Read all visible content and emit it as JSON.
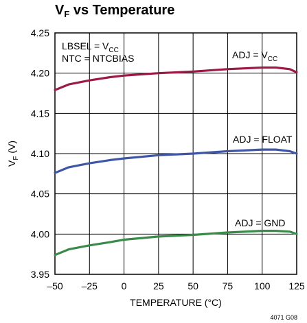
{
  "chart_data": {
    "type": "line",
    "title_main": "V",
    "title_sub": "F",
    "title_rest": " vs Temperature",
    "xlabel": "TEMPERATURE (°C)",
    "ylabel_main": "V",
    "ylabel_sub": "F",
    "ylabel_rest": " (V)",
    "xlim": [
      -50,
      125
    ],
    "ylim": [
      3.95,
      4.25
    ],
    "xticks": [
      -50,
      -25,
      0,
      25,
      50,
      75,
      100,
      125
    ],
    "xtick_labels": [
      "–50",
      "–25",
      "0",
      "25",
      "50",
      "75",
      "100",
      "125"
    ],
    "yticks": [
      3.95,
      4.0,
      4.05,
      4.1,
      4.15,
      4.2,
      4.25
    ],
    "ytick_labels": [
      "3.95",
      "4.00",
      "4.05",
      "4.10",
      "4.15",
      "4.20",
      "4.25"
    ],
    "grid": true,
    "series": [
      {
        "name": "ADJ = VCC",
        "label_main": "ADJ = V",
        "label_sub": "CC",
        "color": "#9b1b45",
        "x": [
          -50,
          -40,
          -25,
          -10,
          0,
          25,
          50,
          75,
          100,
          110,
          120,
          125
        ],
        "y": [
          4.179,
          4.186,
          4.191,
          4.195,
          4.197,
          4.2,
          4.202,
          4.205,
          4.207,
          4.207,
          4.205,
          4.201
        ]
      },
      {
        "name": "ADJ = FLOAT",
        "label_main": "ADJ = FLOAT",
        "label_sub": "",
        "color": "#3f56a6",
        "x": [
          -50,
          -40,
          -25,
          -10,
          0,
          25,
          50,
          75,
          100,
          110,
          120,
          125
        ],
        "y": [
          4.076,
          4.083,
          4.088,
          4.092,
          4.094,
          4.098,
          4.1,
          4.103,
          4.105,
          4.105,
          4.103,
          4.1
        ]
      },
      {
        "name": "ADJ = GND",
        "label_main": "ADJ = GND",
        "label_sub": "",
        "color": "#3a8a4a",
        "x": [
          -50,
          -40,
          -25,
          -10,
          0,
          25,
          50,
          75,
          100,
          110,
          120,
          125
        ],
        "y": [
          3.974,
          3.981,
          3.986,
          3.99,
          3.993,
          3.997,
          3.999,
          4.002,
          4.004,
          4.004,
          4.003,
          4.0
        ]
      }
    ],
    "conditions": [
      {
        "main": "LBSEL = V",
        "sub": "CC"
      },
      {
        "main": "NTC = NTCBIAS",
        "sub": ""
      }
    ],
    "figure_id": "4071 G08"
  }
}
